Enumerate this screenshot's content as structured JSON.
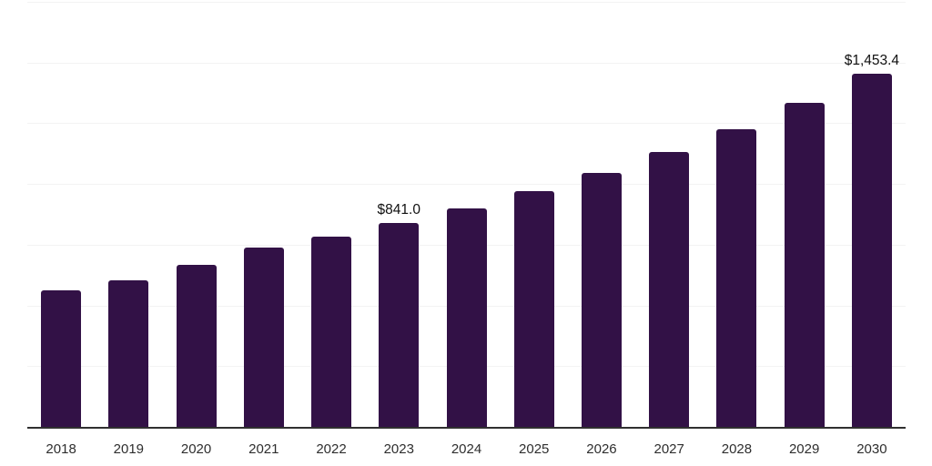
{
  "chart_data": {
    "type": "bar",
    "title": "",
    "xlabel": "",
    "ylabel": "",
    "categories": [
      "2018",
      "2019",
      "2020",
      "2021",
      "2022",
      "2023",
      "2024",
      "2025",
      "2026",
      "2027",
      "2028",
      "2029",
      "2030"
    ],
    "values": [
      562,
      605,
      667,
      738,
      783,
      841.0,
      899,
      970,
      1045,
      1131,
      1225,
      1334,
      1453.4
    ],
    "point_labels": {
      "2023": "$841.0",
      "2030": "$1,453.4"
    },
    "ylim": [
      0,
      1750
    ],
    "gridline_step": 250,
    "grid": true,
    "legend": false,
    "colors": {
      "bar": "#321146",
      "axis": "#303030",
      "gridline": "#f3f3f3",
      "value_label": "#111111",
      "tick_label": "#2e2e2e"
    }
  }
}
